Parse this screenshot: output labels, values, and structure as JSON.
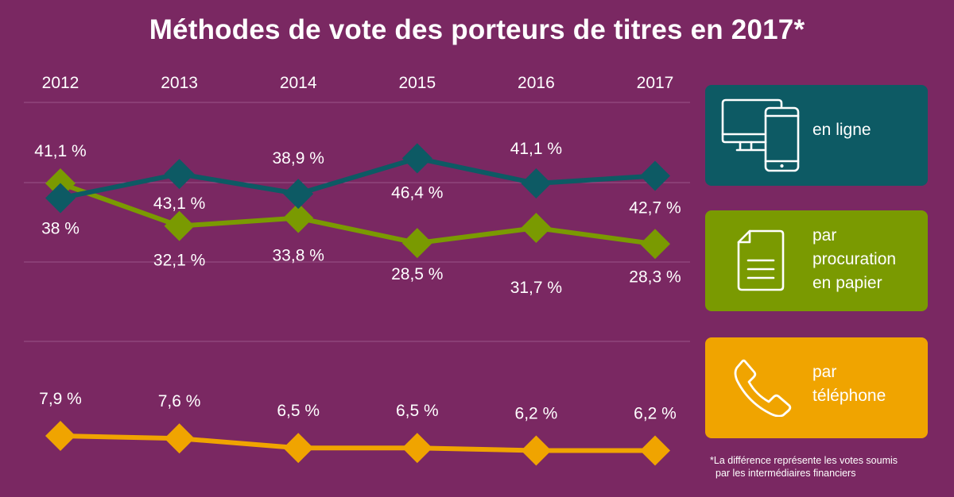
{
  "title": "Méthodes de vote des porteurs de titres en 2017*",
  "colors": {
    "background": "#7a2862",
    "online": "#0d5a64",
    "proxy": "#7a9a01",
    "phone": "#f0a400",
    "gridline": "#9a5488"
  },
  "legend": [
    {
      "key": "online",
      "label": "en ligne",
      "icon": "computer-and-phone-icon",
      "color": "#0d5a64"
    },
    {
      "key": "proxy",
      "label": "par procuration en papier",
      "icon": "paper-document-icon",
      "color": "#7a9a01"
    },
    {
      "key": "phone",
      "label": "par téléphone",
      "icon": "telephone-handset-icon",
      "color": "#f0a400"
    }
  ],
  "footnote": {
    "line1": "*La différence représente les votes soumis",
    "line2": "par les intermédiaires financiers"
  },
  "chart_data": {
    "type": "line",
    "x": [
      "2012",
      "2013",
      "2014",
      "2015",
      "2016",
      "2017"
    ],
    "series": [
      {
        "name": "en ligne",
        "values": [
          38,
          43.1,
          38.9,
          46.4,
          41.1,
          42.7
        ],
        "labels": [
          "38 %",
          "43,1 %",
          "38,9 %",
          "46,4 %",
          "41,1 %",
          "42,7 %"
        ]
      },
      {
        "name": "par procuration en papier",
        "values": [
          41.1,
          32.1,
          33.8,
          28.5,
          31.7,
          28.3
        ],
        "labels": [
          "41,1 %",
          "32,1 %",
          "33,8 %",
          "28,5 %",
          "31,7 %",
          "28,3 %"
        ]
      },
      {
        "name": "par téléphone",
        "values": [
          7.9,
          7.6,
          6.5,
          6.5,
          6.2,
          6.2
        ],
        "labels": [
          "7,9 %",
          "7,6 %",
          "6,5 %",
          "6,5 %",
          "6,2 %",
          "6,2 %"
        ]
      }
    ],
    "axis_position": "top",
    "grid": true,
    "legend_position": "right"
  }
}
